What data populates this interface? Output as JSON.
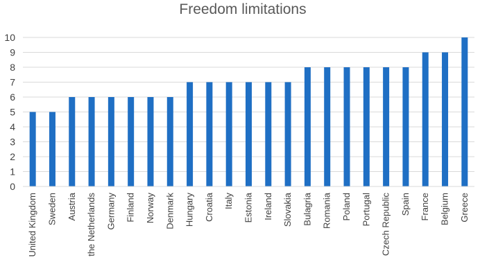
{
  "chart_data": {
    "type": "bar",
    "title": "Freedom limitations",
    "xlabel": "",
    "ylabel": "",
    "ylim": [
      0,
      10
    ],
    "yticks": [
      0,
      1,
      2,
      3,
      4,
      5,
      6,
      7,
      8,
      9,
      10
    ],
    "grid": true,
    "legend": "none",
    "bar_color": "#1F6FC4",
    "grid_color": "#D9D9D9",
    "categories": [
      "United Kingdom",
      "Sweden",
      "Austria",
      "the Netherlands",
      "Germany",
      "Finland",
      "Norway",
      "Denmark",
      "Hungary",
      "Croatia",
      "Italy",
      "Estonia",
      "Ireland",
      "Slovakia",
      "Bulagria",
      "Romania",
      "Poland",
      "Portugal",
      "Czech Republic",
      "Spain",
      "France",
      "Belgium",
      "Greece"
    ],
    "values": [
      5,
      5,
      6,
      6,
      6,
      6,
      6,
      6,
      7,
      7,
      7,
      7,
      7,
      7,
      8,
      8,
      8,
      8,
      8,
      8,
      9,
      9,
      10
    ]
  }
}
